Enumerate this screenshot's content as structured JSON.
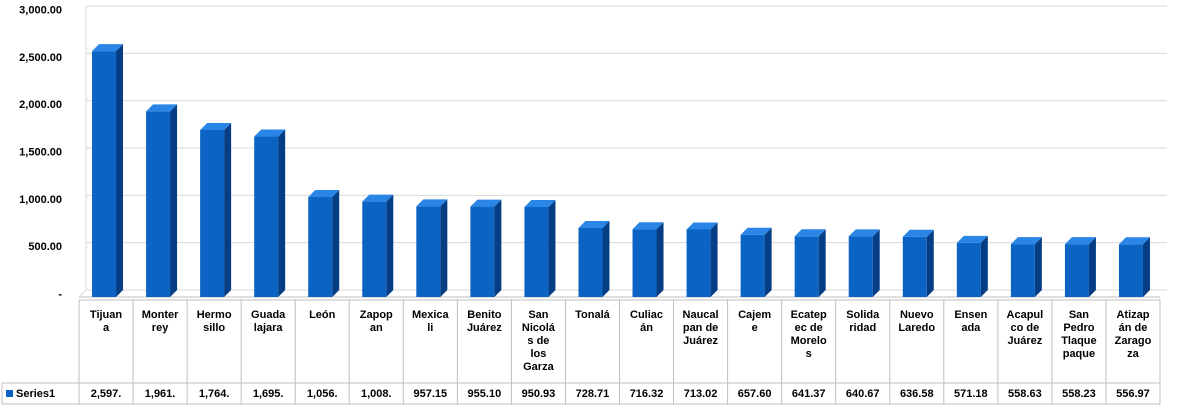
{
  "chart_data": {
    "type": "bar",
    "style": "3d-column",
    "title": "",
    "xlabel": "",
    "ylabel": "",
    "ylim": [
      0,
      3000
    ],
    "yticks": [
      "-",
      "500.00",
      "1,000.00",
      "1,500.00",
      "2,000.00",
      "2,500.00",
      "3,000.00"
    ],
    "grid": true,
    "legend": "data-table-left",
    "categories": [
      [
        "Tijuan",
        "a"
      ],
      [
        "Monter",
        "rey"
      ],
      [
        "Hermo",
        "sillo"
      ],
      [
        "Guada",
        "lajara"
      ],
      [
        "León"
      ],
      [
        "Zapop",
        "an"
      ],
      [
        "Mexica",
        "li"
      ],
      [
        "Benito",
        "Juárez"
      ],
      [
        "San",
        "Nicolá",
        "s de",
        "los",
        "Garza"
      ],
      [
        "Tonalá"
      ],
      [
        "Culiac",
        "án"
      ],
      [
        "Naucal",
        "pan de",
        "Juárez"
      ],
      [
        "Cajem",
        "e"
      ],
      [
        "Ecatep",
        "ec de",
        "Morelo",
        "s"
      ],
      [
        "Solida",
        "ridad"
      ],
      [
        "Nuevo",
        "Laredo"
      ],
      [
        "Ensen",
        "ada"
      ],
      [
        "Acapul",
        "co de",
        "Juárez"
      ],
      [
        "San",
        "Pedro",
        "Tlaque",
        "paque"
      ],
      [
        "Atizap",
        "án de",
        "Zarago",
        "za"
      ]
    ],
    "series": [
      {
        "name": "Series1",
        "color": "#0B63C4",
        "values": [
          2597,
          1961,
          1764,
          1695,
          1056,
          1008,
          957.15,
          955.1,
          950.93,
          728.71,
          716.32,
          713.02,
          657.6,
          641.37,
          640.67,
          636.58,
          571.18,
          558.63,
          558.23,
          556.97
        ],
        "labels": [
          "2,597.",
          "1,961.",
          "1,764.",
          "1,695.",
          "1,056.",
          "1,008.",
          "957.15",
          "955.10",
          "950.93",
          "728.71",
          "716.32",
          "713.02",
          "657.60",
          "641.37",
          "640.67",
          "636.58",
          "571.18",
          "558.63",
          "558.23",
          "556.97"
        ]
      }
    ]
  }
}
